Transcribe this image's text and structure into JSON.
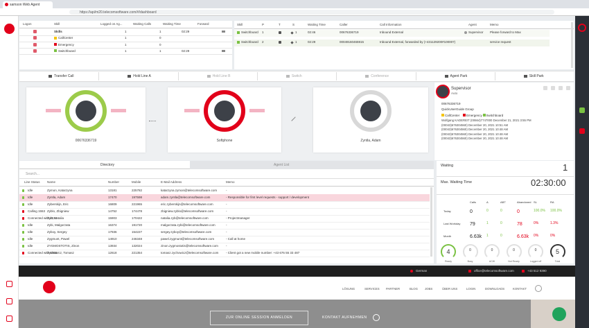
{
  "browser": {
    "tab": "samson Web Agent",
    "url": "https://api/m20.telecomsoftware.com/#/dashboard"
  },
  "skills": {
    "columns": [
      "Logon",
      "Skill",
      "Logged on Ag...",
      "Waiting Calls",
      "Waiting Time",
      "Forward"
    ],
    "rows": [
      [
        "Skills",
        "1",
        "1",
        "02:29"
      ],
      [
        "CallCenter",
        "1",
        "0",
        ""
      ],
      [
        "Emergency",
        "1",
        "0",
        ""
      ],
      [
        "Switchboard",
        "1",
        "1",
        "02:29"
      ]
    ]
  },
  "calls": {
    "columns": [
      "Skill",
      "P",
      "T",
      "S",
      "Waiting Time",
      "Caller",
      "Call Information",
      "Agent",
      "Memo"
    ],
    "rows": [
      {
        "skill": "Switchboard",
        "p": "1",
        "s": "1",
        "time": "02:46",
        "caller": "00676336719",
        "info": "Inbound External",
        "agent": "Supervisor",
        "memo": "Please forward to Max"
      },
      {
        "skill": "Switchboard",
        "p": "2",
        "s": "1",
        "time": "02:29",
        "caller": "00049160465915",
        "info": "Inbound External, forwarded by (+431129200#100007)",
        "agent": "",
        "memo": "service request"
      }
    ]
  },
  "toolbar": [
    "Transfer Call",
    "Hold Line A",
    "Hold Line B",
    "Switch",
    "Conference",
    "Agent Park",
    "Skill Park"
  ],
  "phone": {
    "line_a": "00676336719",
    "softphone": "Softphone",
    "line_b": "Zyntla, Adam"
  },
  "supervisor": {
    "name": "Supervisor",
    "status": "Auto",
    "number": "00676336719",
    "group": "QuickUserGuide Group",
    "skills": [
      "CallCenter",
      "Emergency",
      "Switchboard"
    ],
    "history": [
      "Wolfgang KADEREIT (00664)7747000  December 21, 2021 3:55 PM",
      "(00043)676304560)  December 20, 2021 10:51 AM",
      "(00043)676304560)  December 20, 2021 10:48 AM",
      "(00043)676304560)  December 20, 2021 10:48 AM",
      "(00043)676304560)  December 20, 2021 10:48 AM"
    ]
  },
  "directory": {
    "tabs": [
      "Directory",
      "Agent List"
    ],
    "search": "Search...",
    "columns": [
      "Line Status",
      "Name",
      "Number",
      "Mobile",
      "E-Mail Address",
      "Memo"
    ],
    "rows": [
      [
        "Idle",
        "Zymon, Katarzyna",
        "13181",
        "225782",
        "katarzyna.zymon@telecomsoftware.com",
        "-"
      ],
      [
        "Idle",
        "Zyntla, Adam",
        "17470",
        "197598",
        "adam.zyntla@telecomsoftware.com",
        "- Responsible for first level requests - support / development"
      ],
      [
        "Idle",
        "Zyberskijn, Eric",
        "16809",
        "221965",
        "eric.zyberskijn@telecomsoftware.com",
        "-"
      ],
      [
        "Calling 1553",
        "Zyblo, Zbigniew",
        "14752",
        "174478",
        "zbigniew.zyblo@telecomsoftware.com",
        "-"
      ],
      [
        "Connected with 2512",
        "Zyb, Natalia",
        "15903",
        "170422",
        "natalia.zyb@telecomsoftware.com",
        "- Projectmanager"
      ],
      [
        "Idle",
        "Zybi, Malgorzata",
        "16374",
        "191720",
        "malgorzata.zybi@telecomsoftware.com",
        "-"
      ],
      [
        "Idle",
        "Zyboy, Sergey",
        "17936",
        "154227",
        "sergey.zyboy@telecomsoftware.com",
        "-"
      ],
      [
        "Idle",
        "Zygmunt, Pawel",
        "14910",
        "246348",
        "pawel.zygmunt@telecomsoftware.com",
        "- Call at home"
      ],
      [
        "Idle",
        "ZYGMOSTOTIS, Zinon",
        "13934",
        "132024",
        "zinon.zygmostotis@telecomsoftware.com",
        "-"
      ],
      [
        "Connected with 5403",
        "Zychowicz, Tomasz",
        "12618",
        "221354",
        "tomasz.zychowicz@telecomsoftware.com",
        "- Client got a new mobile number: +43 676 55 33 487"
      ]
    ]
  },
  "stats": {
    "waiting_label": "Waiting",
    "waiting": "1",
    "max_label": "Max. Waiting Time",
    "max": "02:30:00",
    "columns": [
      "Calls",
      "A",
      "ABT",
      "Abandoned",
      "SL",
      "RA"
    ],
    "rows": [
      {
        "label": "Today",
        "cells": [
          "0",
          "0",
          "0",
          "0",
          "100.0%",
          "100.0%"
        ]
      },
      {
        "label": "Last Workday",
        "cells": [
          "79",
          "1",
          "0",
          "78",
          "0%",
          "1.3%"
        ]
      },
      {
        "label": "Month",
        "cells": [
          "6.63k",
          "1",
          "0",
          "6.63k",
          "0%",
          "0%"
        ]
      }
    ],
    "gauges": [
      {
        "value": "4",
        "label": "Ready"
      },
      {
        "value": "0",
        "label": "Busy"
      },
      {
        "value": "0",
        "label": "ACW"
      },
      {
        "value": "0",
        "label": "Not Ready"
      },
      {
        "value": "0",
        "label": "Logged off"
      },
      {
        "value": "5",
        "label": "Total"
      }
    ]
  },
  "website": {
    "language": "German",
    "email": "office@telecomsoftware.com",
    "phone": "+43 512 9390",
    "nav": [
      "LÖSUNG",
      "SERVICES",
      "PARTNER",
      "BLOG",
      "JOBS",
      "ÜBER UNS",
      "LOGIN",
      "DOWNLOADS",
      "KONTAKT"
    ],
    "session": "ZUR ONLINE SESSION ANMELDEN",
    "contact": "KONTAKT AUFNEHMEN"
  }
}
